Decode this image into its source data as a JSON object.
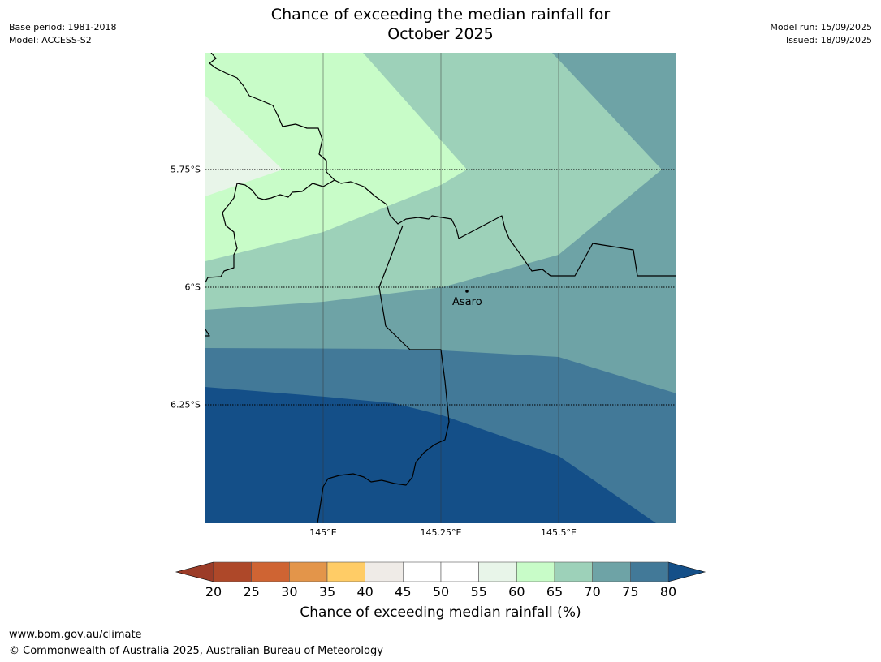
{
  "title": {
    "line1": "Chance of exceeding the median rainfall for",
    "line2": "October 2025"
  },
  "meta_left": {
    "base_period": "Base period: 1981-2018",
    "model": "Model: ACCESS-S2"
  },
  "meta_right": {
    "model_run": "Model run: 15/09/2025",
    "issued": "Issued: 18/09/2025"
  },
  "map": {
    "lat_labels": [
      "5.75°S",
      "6°S",
      "6.25°S"
    ],
    "lon_labels": [
      "145°E",
      "145.25°E",
      "145.5°E"
    ],
    "place": "Asaro",
    "colors": {
      "band_55_60": "#e8f5e9",
      "band_60_65": "#c8fcc8",
      "band_65_70": "#9dd1b9",
      "band_70_75": "#6ea3a6",
      "band_75_80": "#427998",
      "band_over_80": "#144f88"
    }
  },
  "colorbar": {
    "ticks": [
      "20",
      "25",
      "30",
      "35",
      "40",
      "45",
      "50",
      "55",
      "60",
      "65",
      "70",
      "75",
      "80"
    ],
    "colors": [
      "#ae4829",
      "#cf6433",
      "#e3954a",
      "#ffcc66",
      "#efebe7",
      "#ffffff",
      "#ffffff",
      "#e8f5e9",
      "#c8fcc8",
      "#9dd1b9",
      "#6ea3a6",
      "#427998"
    ],
    "under_color": "#9c3c28",
    "over_color": "#144f88",
    "label": "Chance of exceeding median rainfall (%)"
  },
  "footer": {
    "url": "www.bom.gov.au/climate",
    "copyright": "© Commonwealth of Australia 2025, Australian Bureau of Meteorology"
  }
}
